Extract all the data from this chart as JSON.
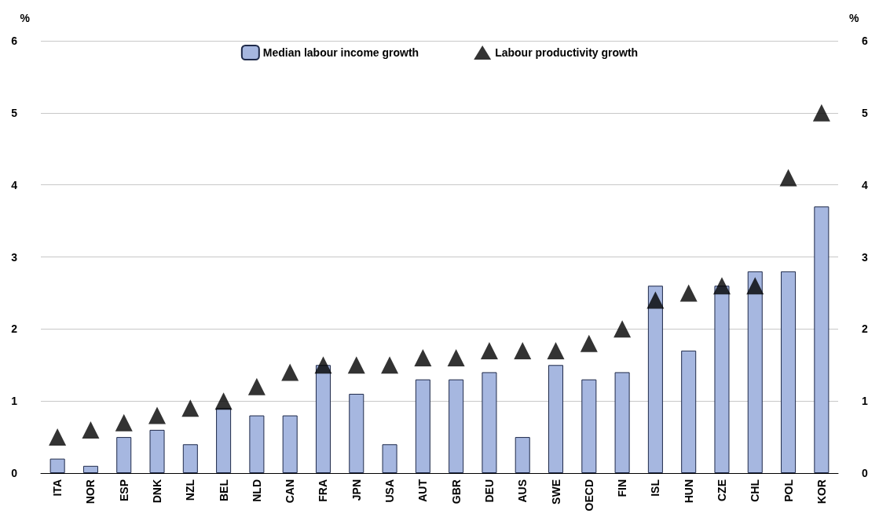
{
  "chart_data": {
    "type": "bar",
    "categories": [
      "ITA",
      "NOR",
      "ESP",
      "DNK",
      "NZL",
      "BEL",
      "NLD",
      "CAN",
      "FRA",
      "JPN",
      "USA",
      "AUT",
      "GBR",
      "DEU",
      "AUS",
      "SWE",
      "OECD",
      "FIN",
      "ISL",
      "HUN",
      "CZE",
      "CHL",
      "POL",
      "KOR"
    ],
    "series": [
      {
        "name": "Median labour income growth",
        "color": "#a6b7e0",
        "values": [
          0.2,
          0.1,
          0.5,
          0.6,
          0.4,
          0.9,
          0.8,
          0.8,
          1.5,
          1.1,
          0.4,
          1.3,
          1.3,
          1.4,
          0.5,
          1.5,
          1.3,
          1.4,
          2.6,
          1.7,
          2.6,
          2.8,
          2.8,
          3.7
        ]
      },
      {
        "name": "Labour productivity growth",
        "type": "scatter",
        "color": "#000000",
        "marker": "triangle",
        "values": [
          0.5,
          0.6,
          0.7,
          0.8,
          0.9,
          1.0,
          1.2,
          1.4,
          1.5,
          1.5,
          1.5,
          1.6,
          1.6,
          1.7,
          1.7,
          1.7,
          1.8,
          2.0,
          2.4,
          2.5,
          2.6,
          2.6,
          4.1,
          5.0
        ]
      }
    ],
    "ylabel": "%",
    "y2label": "%",
    "ylim": [
      0,
      6
    ],
    "yticks": [
      0,
      1,
      2,
      3,
      4,
      5,
      6
    ],
    "y2lim": [
      0,
      6
    ],
    "y2ticks": [
      0,
      1,
      2,
      3,
      4,
      5,
      6
    ],
    "grid": "y",
    "legend": "top"
  }
}
